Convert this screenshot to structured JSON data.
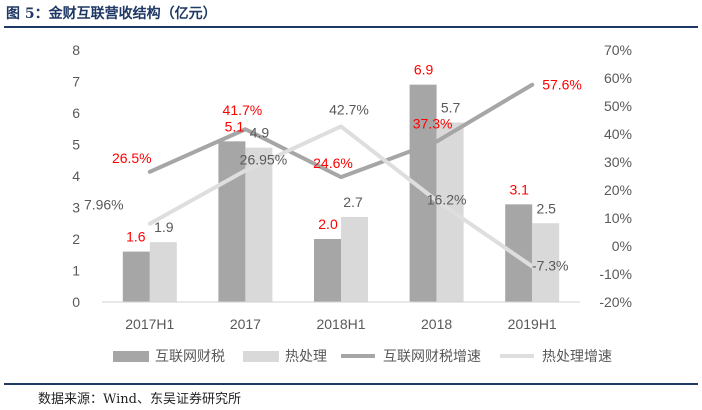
{
  "figure": {
    "title": "图 5：金财互联营收结构（亿元）",
    "source": "数据来源：Wind、东吴证券研究所"
  },
  "colors": {
    "bar_tax": "#a6a6a6",
    "bar_heat": "#d9d9d9",
    "line_tax": "#a6a6a6",
    "line_heat": "#dedede",
    "highlight_label": "#ff0000",
    "normal_label": "#595959",
    "rule": "#1f3864"
  },
  "chart_data": {
    "type": "bar",
    "categories": [
      "2017H1",
      "2017",
      "2018H1",
      "2018",
      "2019H1"
    ],
    "left_axis": {
      "ylim": [
        0,
        8
      ],
      "ticks": [
        "0",
        "1",
        "2",
        "3",
        "4",
        "5",
        "6",
        "7",
        "8"
      ]
    },
    "right_axis": {
      "ylim": [
        -20,
        70
      ],
      "ticks": [
        "-20%",
        "-10%",
        "0%",
        "10%",
        "20%",
        "30%",
        "40%",
        "50%",
        "60%",
        "70%"
      ]
    },
    "series": [
      {
        "name": "互联网财税",
        "kind": "bar",
        "axis": "left",
        "values": [
          1.6,
          5.1,
          2.0,
          6.9,
          3.1
        ],
        "labels": [
          "1.6",
          "5.1",
          "2.0",
          "6.9",
          "3.1"
        ],
        "label_highlight": true
      },
      {
        "name": "热处理",
        "kind": "bar",
        "axis": "left",
        "values": [
          1.9,
          4.9,
          2.7,
          5.7,
          2.5
        ],
        "labels": [
          "1.9",
          "4.9",
          "2.7",
          "5.7",
          "2.5"
        ],
        "label_highlight": false
      },
      {
        "name": "互联网财税增速",
        "kind": "line",
        "axis": "right",
        "values": [
          26.5,
          41.7,
          24.6,
          37.3,
          57.6
        ],
        "labels": [
          "26.5%",
          "41.7%",
          "24.6%",
          "37.3%",
          "57.6%"
        ],
        "label_highlight": true
      },
      {
        "name": "热处理增速",
        "kind": "line",
        "axis": "right",
        "values": [
          7.96,
          26.95,
          42.7,
          16.2,
          -7.3
        ],
        "labels": [
          "7.96%",
          "26.95%",
          "42.7%",
          "16.2%",
          "-7.3%"
        ],
        "label_highlight": false
      }
    ],
    "grid": false,
    "legend_position": "bottom"
  }
}
